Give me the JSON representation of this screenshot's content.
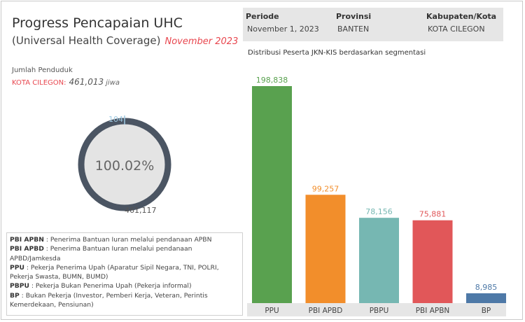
{
  "header": {
    "title": "Progress Pencapaian UHC",
    "subtitle": "(Universal Health Coverage)",
    "month": "November 2023"
  },
  "population": {
    "label": "Jumlah Penduduk",
    "city": "KOTA CILEGON:",
    "value": "461,013",
    "unit": "jiwa"
  },
  "donut": {
    "percent_label": "100.02%",
    "percent": 100.02,
    "top_label": "104",
    "bottom_label": "461,117",
    "ring_color": "#4b5563",
    "fill_color": "#e4e4e4"
  },
  "legend": [
    {
      "abbr": "PBI APBN",
      "text": ": Penerima Bantuan Iuran melalui pendanaan APBN"
    },
    {
      "abbr": "PBI APBD",
      "text": ": Penerima Bantuan Iuran melalui pendanaan APBD/Jamkesda"
    },
    {
      "abbr": "PPU",
      "text": ": Pekerja Penerima Upah (Aparatur Sipil Negara, TNI, POLRI, Pekerja Swasta, BUMN, BUMD)"
    },
    {
      "abbr": "PBPU",
      "text": ": Pekerja Bukan Penerima Upah (Pekerja informal)"
    },
    {
      "abbr": "BP",
      "text": ": Bukan Pekerja (Investor, Pemberi Kerja, Veteran, Perintis Kemerdekaan, Pensiunan)"
    }
  ],
  "filters": {
    "periode_label": "Periode",
    "periode_value": "November 1, 2023",
    "provinsi_label": "Provinsi",
    "provinsi_value": "BANTEN",
    "kabupaten_label": "Kabupaten/Kota",
    "kabupaten_value": "KOTA CILEGON"
  },
  "chart_data": {
    "type": "bar",
    "title": "Distribusi Peserta JKN-KIS berdasarkan segmentasi",
    "categories": [
      "PPU",
      "PBI APBD",
      "PBPU",
      "PBI APBN",
      "BP"
    ],
    "values": [
      198838,
      99257,
      78156,
      75881,
      8985
    ],
    "value_labels": [
      "198,838",
      "99,257",
      "78,156",
      "75,881",
      "8,985"
    ],
    "colors": [
      "#59a14f",
      "#f28e2b",
      "#76b7b2",
      "#e15759",
      "#4e79a7"
    ],
    "ylim": [
      0,
      198838
    ],
    "grid": false,
    "legend": "none"
  }
}
